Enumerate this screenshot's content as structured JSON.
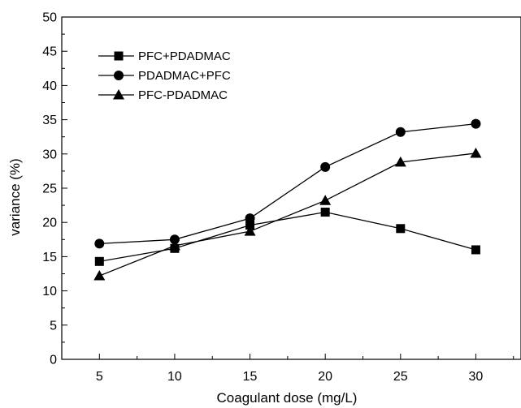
{
  "chart_data": {
    "type": "line",
    "xlabel": "Coagulant dose (mg/L)",
    "ylabel": "variance (%)",
    "xlim": [
      2.5,
      33
    ],
    "ylim": [
      0,
      50
    ],
    "xticks": [
      5,
      10,
      15,
      20,
      25,
      30
    ],
    "yticks": [
      0,
      5,
      10,
      15,
      20,
      25,
      30,
      35,
      40,
      45,
      50
    ],
    "grid": false,
    "legend_position": "top-left",
    "x": [
      5,
      10,
      15,
      20,
      25,
      30
    ],
    "series": [
      {
        "name": "PFC+PDADMAC",
        "marker": "square",
        "values": [
          14.3,
          16.2,
          19.6,
          21.5,
          19.1,
          16.0
        ]
      },
      {
        "name": "PDADMAC+PFC",
        "marker": "circle",
        "values": [
          16.9,
          17.5,
          20.6,
          28.1,
          33.2,
          34.4
        ]
      },
      {
        "name": "PFC-PDADMAC",
        "marker": "triangle",
        "values": [
          12.2,
          16.6,
          18.7,
          23.2,
          28.8,
          30.1
        ]
      }
    ],
    "colors": {
      "line": "#000000",
      "marker": "#000000",
      "axis": "#000000",
      "background": "#ffffff"
    }
  }
}
